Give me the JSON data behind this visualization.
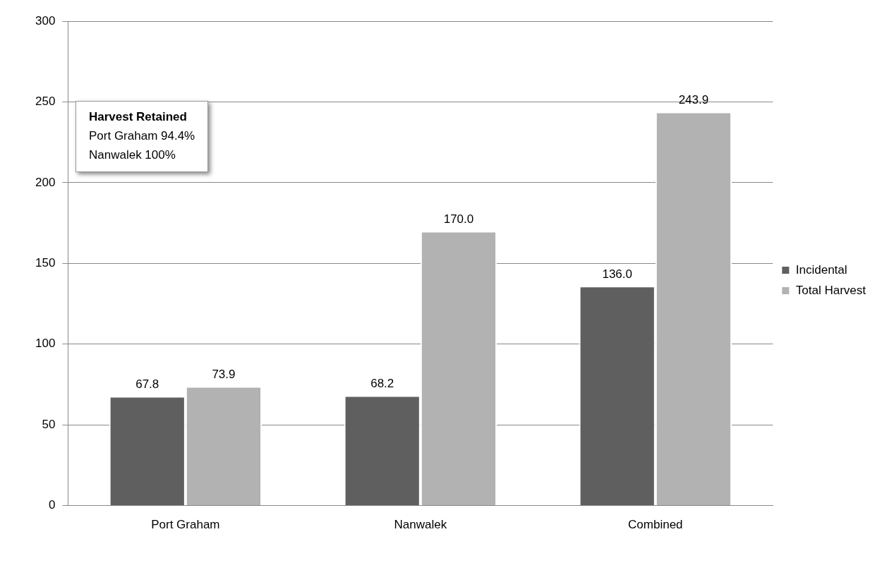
{
  "chart_data": {
    "type": "bar",
    "categories": [
      "Port Graham",
      "Nanwalek",
      "Combined"
    ],
    "series": [
      {
        "name": "Incidental",
        "color": "#5f5f5f",
        "values": [
          67.8,
          68.2,
          136.0
        ],
        "value_labels": [
          "67.8",
          "68.2",
          "136.0"
        ]
      },
      {
        "name": "Total Harvest",
        "color": "#b2b2b2",
        "values": [
          73.9,
          170.0,
          243.9
        ],
        "value_labels": [
          "73.9",
          "170.0",
          "243.9"
        ]
      }
    ],
    "ylim": [
      0,
      300
    ],
    "yticks": [
      0,
      50,
      100,
      150,
      200,
      250,
      300
    ],
    "grid": "y",
    "legend": "right",
    "annotations": [
      "Harvest Retained",
      "Port Graham 94.4%",
      "Nanwalek 100%"
    ]
  }
}
